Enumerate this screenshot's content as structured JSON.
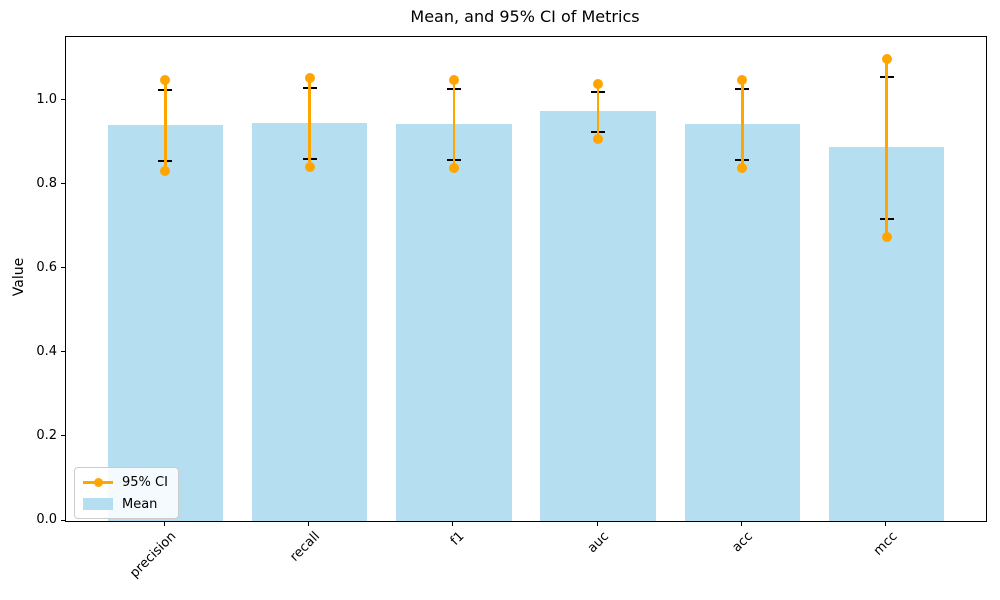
{
  "figure": {
    "title": "Mean, and 95% CI of Metrics",
    "ylabel": "Value"
  },
  "legend": {
    "items": [
      {
        "label": "95% CI",
        "type": "line",
        "color": "#FFA500"
      },
      {
        "label": "Mean",
        "type": "patch",
        "color": "#B5DEF0"
      }
    ]
  },
  "chart_data": {
    "type": "bar",
    "title": "Mean, and 95% CI of Metrics",
    "xlabel": "",
    "ylabel": "Value",
    "categories": [
      "precision",
      "recall",
      "f1",
      "auc",
      "acc",
      "mcc"
    ],
    "series": [
      {
        "name": "Mean",
        "values": [
          0.943,
          0.948,
          0.945,
          0.977,
          0.945,
          0.89
        ]
      },
      {
        "name": "95% CI lower",
        "values": [
          0.833,
          0.843,
          0.84,
          0.91,
          0.84,
          0.676
        ]
      },
      {
        "name": "95% CI upper",
        "values": [
          1.05,
          1.054,
          1.049,
          1.04,
          1.05,
          1.099
        ]
      },
      {
        "name": "inner cap lower",
        "values": [
          0.856,
          0.861,
          0.859,
          0.926,
          0.859,
          0.72
        ]
      },
      {
        "name": "inner cap upper",
        "values": [
          1.027,
          1.03,
          1.028,
          1.021,
          1.028,
          1.057
        ]
      }
    ],
    "ylim": [
      0,
      1.152
    ],
    "xlim": [
      -0.69,
      5.69
    ],
    "bar_width_units": 0.8,
    "yticks": [
      0.0,
      0.2,
      0.4,
      0.6,
      0.8,
      1.0
    ],
    "ytick_labels": [
      "0.0",
      "0.2",
      "0.4",
      "0.6",
      "0.8",
      "1.0"
    ],
    "xtick_rotation": 45,
    "grid": false,
    "legend_position": "lower left",
    "bar_color": "#B5DEF0",
    "ci_color": "#FFA500",
    "cap_color": "#000000",
    "axis_color": "#000000"
  }
}
